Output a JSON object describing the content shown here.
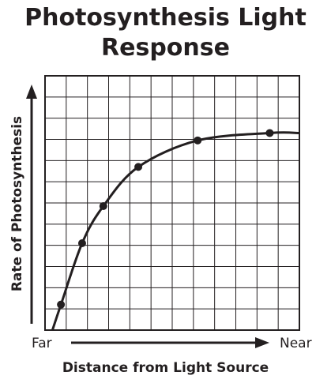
{
  "title_line1": "Photosynthesis Light",
  "title_line2": "Response",
  "chart_data": {
    "type": "line",
    "title": "Photosynthesis Light Response",
    "xlabel": "Distance from Light Source",
    "ylabel": "Rate of Photosynthesis",
    "x_tick_labels": [
      "Far",
      "Near"
    ],
    "grid": true,
    "xlim": [
      0,
      12
    ],
    "ylim": [
      0,
      12
    ],
    "series": [
      {
        "points": [
          {
            "x": 0.75,
            "y": 1.2
          },
          {
            "x": 1.75,
            "y": 4.1
          },
          {
            "x": 2.75,
            "y": 5.85
          },
          {
            "x": 4.4,
            "y": 7.7
          },
          {
            "x": 7.2,
            "y": 8.95
          },
          {
            "x": 10.6,
            "y": 9.3
          }
        ],
        "curve": [
          {
            "x": 0.35,
            "y": 0
          },
          {
            "x": 0.75,
            "y": 1.2
          },
          {
            "x": 1.75,
            "y": 4.1
          },
          {
            "x": 2.75,
            "y": 5.85
          },
          {
            "x": 4.4,
            "y": 7.7
          },
          {
            "x": 7.2,
            "y": 8.95
          },
          {
            "x": 10.6,
            "y": 9.3
          },
          {
            "x": 12,
            "y": 9.3
          }
        ]
      }
    ],
    "color": "#231f20"
  }
}
